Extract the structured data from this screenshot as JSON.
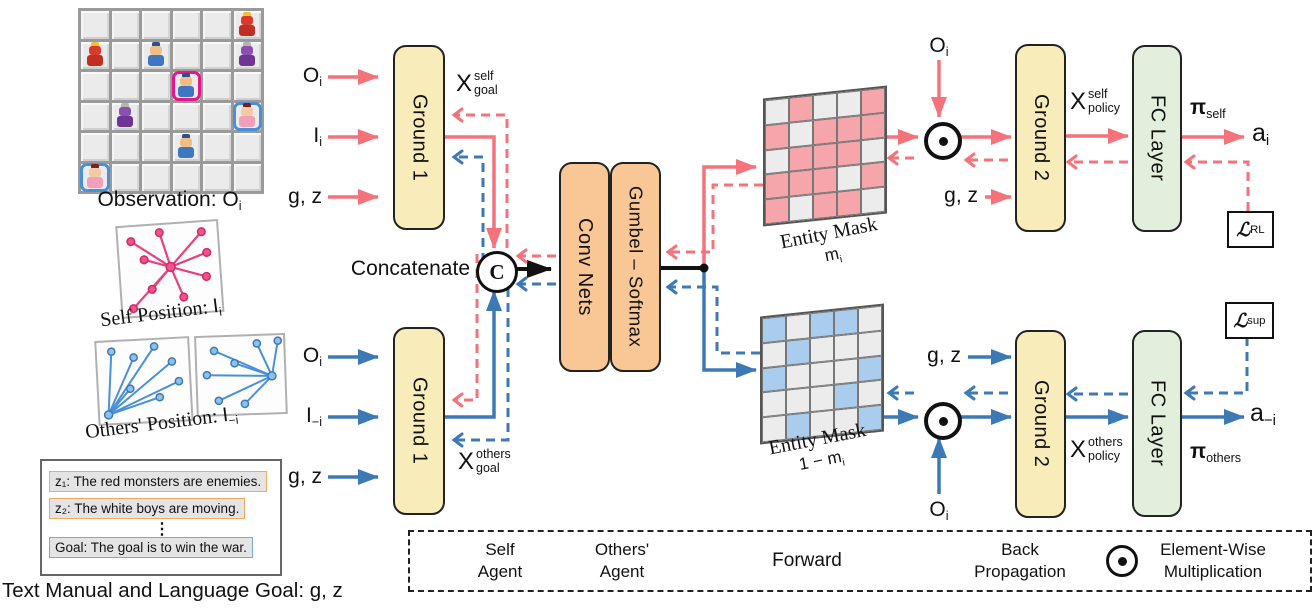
{
  "colors": {
    "pink": "#f4737b",
    "blue": "#3d79b5",
    "magenta": "#e8158a",
    "block_yellow": "#f9ecbb",
    "block_orange": "#f8c795",
    "block_green": "#e2efdc",
    "mask_pink": "#f6a6ab",
    "mask_blue": "#aacdee",
    "cell_gray": "#ececec"
  },
  "observation": {
    "caption": "Observation:",
    "rows": 6,
    "cols": 6,
    "sprites": [
      {
        "row": 0,
        "col": 5,
        "type": "red-monster"
      },
      {
        "row": 1,
        "col": 0,
        "type": "red-monster"
      },
      {
        "row": 1,
        "col": 2,
        "type": "white-boy"
      },
      {
        "row": 1,
        "col": 5,
        "type": "purple-monster"
      },
      {
        "row": 2,
        "col": 3,
        "type": "self-agent"
      },
      {
        "row": 3,
        "col": 1,
        "type": "purple-monster"
      },
      {
        "row": 3,
        "col": 5,
        "type": "other-agent"
      },
      {
        "row": 4,
        "col": 3,
        "type": "white-boy"
      },
      {
        "row": 5,
        "col": 0,
        "type": "other-agent"
      }
    ],
    "sprite_colors": {
      "red-monster": {
        "accent": "#f2c230",
        "head": "#d93a2b",
        "body": "#c03022"
      },
      "purple-monster": {
        "accent": "#b5b5b5",
        "head": "#8a4fb0",
        "body": "#6e3595"
      },
      "white-boy": {
        "accent": "#2b4f8e",
        "head": "#f0bd85",
        "body": "#3e76c2"
      },
      "self-agent": {
        "accent": "#2b4f8e",
        "head": "#f0bd85",
        "body": "#3e76c2",
        "ring": "#e8158a"
      },
      "other-agent": {
        "accent": "#7a1f1f",
        "head": "#f3c9a6",
        "body": "#f0a0b8",
        "ring": "#4a90d9"
      }
    }
  },
  "positions": {
    "self_caption": "Self  Position:",
    "others_caption": "Others'  Position:"
  },
  "manual": {
    "lines": [
      {
        "text": "z₁: The red monsters are enemies.",
        "accent": "orange"
      },
      {
        "text": "z₂: The white boys are moving.",
        "accent": "orange"
      },
      {
        "text": "Goal: The goal is to win the war.",
        "accent": "blue"
      }
    ],
    "ellipsis": "⋮",
    "caption": "Text Manual and Language Goal:",
    "caption_math": "g, z"
  },
  "labels": {
    "o_i": {
      "base": "O",
      "sub": "i"
    },
    "i_i": {
      "base": "I",
      "sub": "i"
    },
    "i_minus_i": {
      "base": "I",
      "sub": "−i"
    },
    "gz": {
      "base": "g, z"
    },
    "ground1": "Ground 1",
    "ground2": "Ground 2",
    "conv": "Conv Nets",
    "gumbel": "Gumbel – Softmax",
    "fc": "FC Layer",
    "concatenate": "Concatenate",
    "concat_c": "C",
    "x_goal_self": {
      "base": "X",
      "sup": "self",
      "sub": "goal"
    },
    "x_goal_others": {
      "base": "X",
      "sup": "others",
      "sub": "goal"
    },
    "x_policy_self": {
      "base": "X",
      "sup": "self",
      "sub": "policy"
    },
    "x_policy_others": {
      "base": "X",
      "sup": "others",
      "sub": "policy"
    },
    "entity_mask": "Entity Mask",
    "m_i": {
      "base": "m",
      "sub": "i"
    },
    "one_minus_m_i": {
      "base": "1 − m",
      "sub": "i"
    },
    "pi_self": {
      "base": "π",
      "sub": "self"
    },
    "pi_others": {
      "base": "π",
      "sub": "others"
    },
    "a_i": {
      "base": "a",
      "sub": "i"
    },
    "a_minus_i": {
      "base": "a",
      "sub": "−i"
    },
    "loss_rl": {
      "base": "ℒ",
      "sub": "RL"
    },
    "loss_sup": {
      "base": "ℒ",
      "sub": "sup"
    }
  },
  "masks": {
    "self_pattern": [
      [
        0,
        1,
        0,
        0,
        1
      ],
      [
        1,
        0,
        1,
        1,
        1
      ],
      [
        0,
        1,
        1,
        1,
        0
      ],
      [
        1,
        1,
        1,
        0,
        1
      ],
      [
        1,
        0,
        1,
        1,
        0
      ]
    ],
    "others_pattern": [
      [
        1,
        0,
        1,
        1,
        0
      ],
      [
        0,
        1,
        0,
        0,
        0
      ],
      [
        1,
        0,
        0,
        0,
        1
      ],
      [
        0,
        0,
        0,
        1,
        0
      ],
      [
        0,
        1,
        0,
        0,
        1
      ]
    ]
  },
  "legend": {
    "self_agent": [
      "Self",
      "Agent"
    ],
    "others_agent": [
      "Others'",
      "Agent"
    ],
    "forward": "Forward",
    "backprop": [
      "Back",
      "Propagation"
    ],
    "elementwise": [
      "Element-Wise",
      "Multiplication"
    ]
  }
}
